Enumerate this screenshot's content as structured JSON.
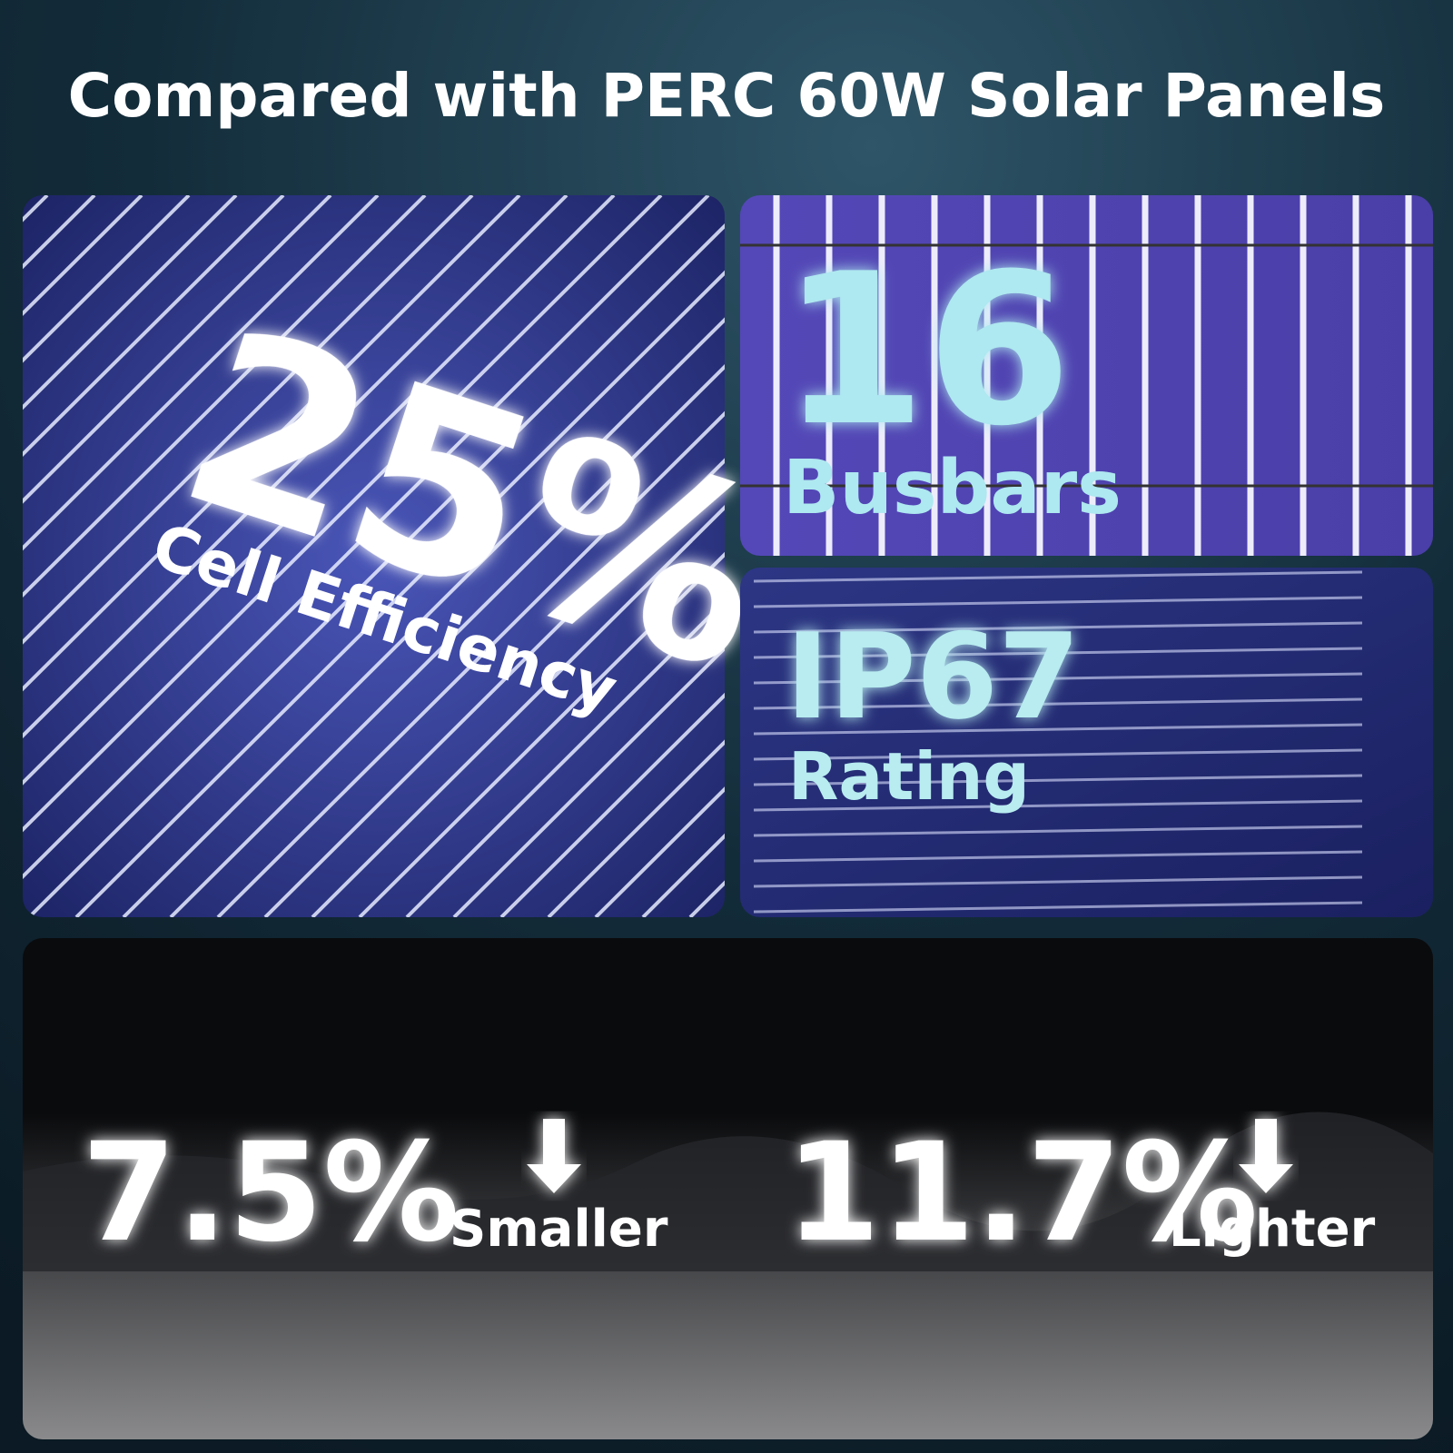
{
  "header": {
    "title": "Compared with PERC 60W Solar Panels"
  },
  "panels": [
    {
      "value": "25%",
      "label": "Cell Efficiency"
    },
    {
      "value": "16",
      "label": "Busbars"
    },
    {
      "value": "IP67",
      "label": "Rating"
    }
  ],
  "comparisons": [
    {
      "value": "7.5%",
      "label": "Smaller"
    },
    {
      "value": "11.7%",
      "label": "Lighter"
    }
  ]
}
